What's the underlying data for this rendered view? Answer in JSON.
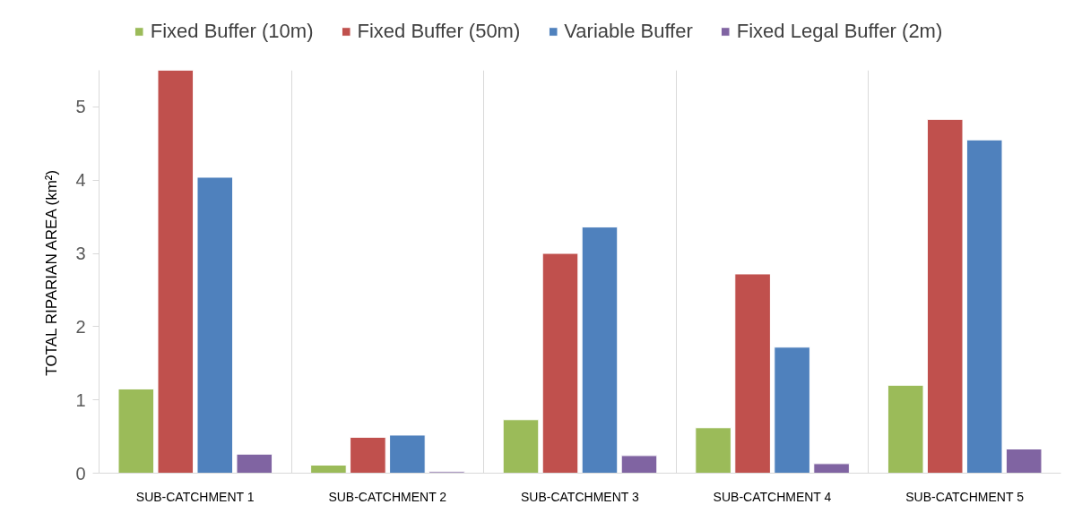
{
  "chart_data": {
    "type": "bar",
    "ylabel": "TOTAL RIPARIAN AREA (km²)",
    "categories": [
      "SUB-CATCHMENT 1",
      "SUB-CATCHMENT 2",
      "SUB-CATCHMENT 3",
      "SUB-CATCHMENT 4",
      "SUB-CATCHMENT 5"
    ],
    "series": [
      {
        "name": "Fixed Buffer (10m)",
        "color": "#9bbb59",
        "values": [
          1.15,
          0.11,
          0.73,
          0.62,
          1.2
        ]
      },
      {
        "name": "Fixed Buffer (50m)",
        "color": "#c0504d",
        "values": [
          5.5,
          0.49,
          3.0,
          2.72,
          4.83
        ]
      },
      {
        "name": "Variable Buffer",
        "color": "#4f81bd",
        "values": [
          4.04,
          0.52,
          3.36,
          1.72,
          4.55
        ]
      },
      {
        "name": "Fixed Legal Buffer (2m)",
        "color": "#8064a2",
        "values": [
          0.26,
          0.02,
          0.24,
          0.13,
          0.33
        ]
      }
    ],
    "ylim": [
      0,
      5.5
    ],
    "yticks": [
      0,
      1,
      2,
      3,
      4,
      5
    ],
    "grid": "x",
    "legend": "top"
  }
}
